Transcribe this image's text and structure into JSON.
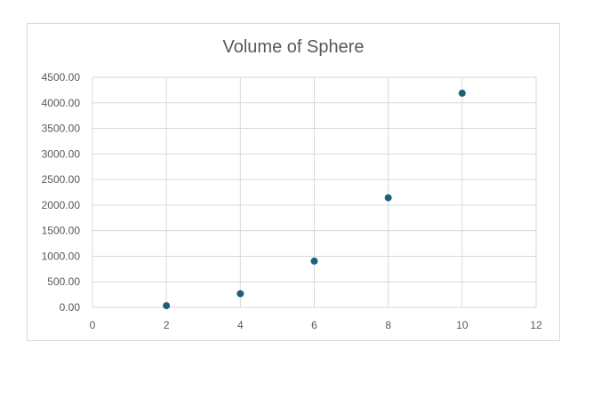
{
  "chart_data": {
    "type": "scatter",
    "title": "Volume of Sphere",
    "xlabel": "",
    "ylabel": "",
    "x": [
      2,
      4,
      6,
      8,
      10
    ],
    "y": [
      33.51,
      268.08,
      904.78,
      2144.66,
      4188.79
    ],
    "xlim": [
      0,
      12
    ],
    "ylim": [
      0,
      4500
    ],
    "x_ticks": [
      "0",
      "2",
      "4",
      "6",
      "8",
      "10",
      "12"
    ],
    "y_ticks": [
      "0.00",
      "500.00",
      "1000.00",
      "1500.00",
      "2000.00",
      "2500.00",
      "3000.00",
      "3500.00",
      "4000.00",
      "4500.00"
    ],
    "grid": true,
    "legend": "none",
    "marker_color": "#1f5f7a"
  }
}
